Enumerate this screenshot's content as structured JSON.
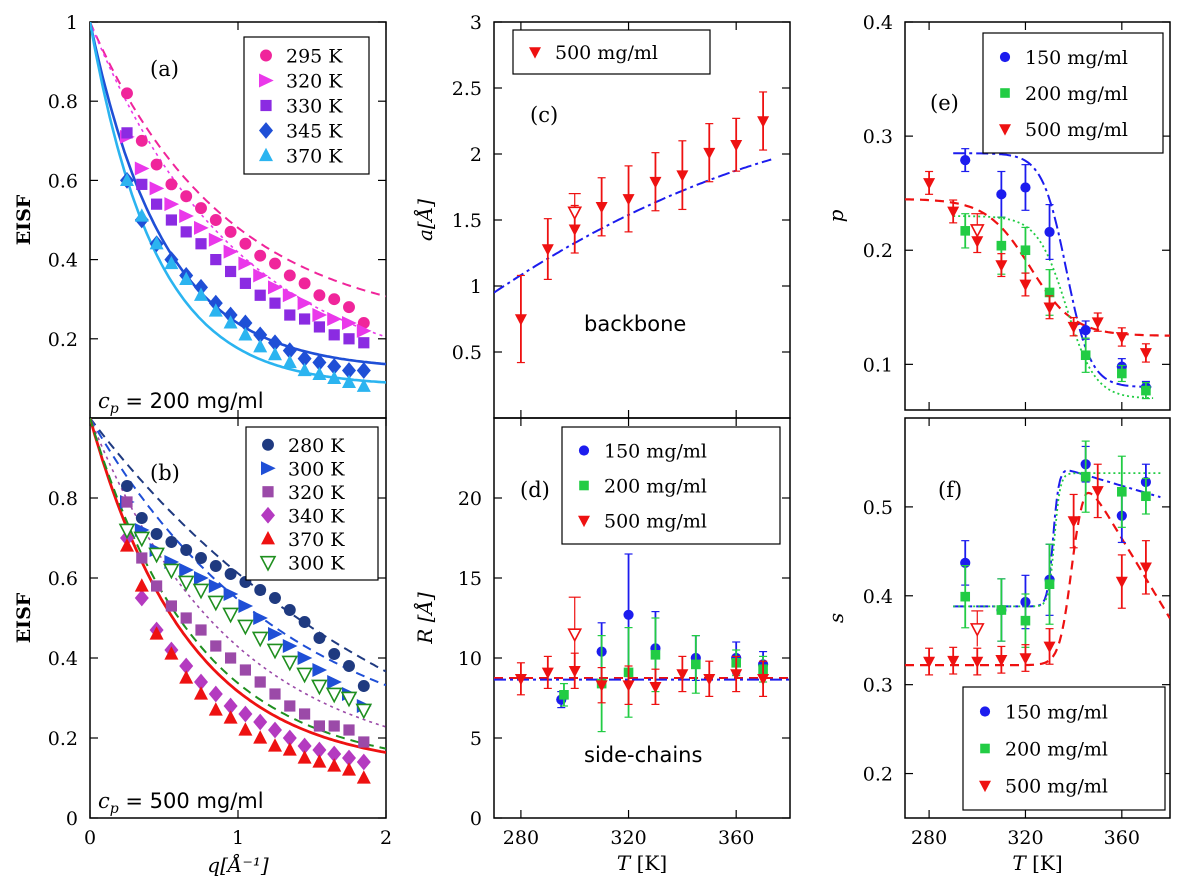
{
  "figure": {
    "x_label_q": "q[Å⁻¹]",
    "x_label_T": "T [K]",
    "eisf_label": "EISF"
  },
  "chart_data": [
    {
      "id": "a",
      "panel_label": "(a)",
      "type": "scatter",
      "ylabel": "EISF",
      "xlim": [
        0,
        2
      ],
      "ylim": [
        0,
        1
      ],
      "xticks": [
        "0",
        "1",
        "2"
      ],
      "yticks": [
        "0.2",
        "0.4",
        "0.6",
        "0.8",
        "1"
      ],
      "annotation": "c_p = 200 mg/ml",
      "legend": "top-right",
      "q": [
        0.25,
        0.35,
        0.45,
        0.55,
        0.65,
        0.75,
        0.85,
        0.95,
        1.05,
        1.15,
        1.25,
        1.35,
        1.45,
        1.55,
        1.65,
        1.75,
        1.85
      ],
      "series": [
        {
          "name": "295 K",
          "color": "#f0259b",
          "marker": "circle",
          "values": [
            0.82,
            0.7,
            0.64,
            0.59,
            0.56,
            0.53,
            0.5,
            0.47,
            0.44,
            0.41,
            0.39,
            0.36,
            0.34,
            0.31,
            0.3,
            0.28,
            0.24
          ]
        },
        {
          "name": "320 K",
          "color": "#ea38ea",
          "marker": "triangle-right",
          "values": [
            0.71,
            0.63,
            0.58,
            0.54,
            0.51,
            0.48,
            0.45,
            0.42,
            0.39,
            0.36,
            0.33,
            0.31,
            0.29,
            0.26,
            0.25,
            0.24,
            0.22
          ]
        },
        {
          "name": "330 K",
          "color": "#8b2be2",
          "marker": "square",
          "values": [
            0.72,
            0.59,
            0.54,
            0.5,
            0.47,
            0.44,
            0.4,
            0.37,
            0.34,
            0.31,
            0.29,
            0.26,
            0.25,
            0.23,
            0.21,
            0.2,
            0.19
          ]
        },
        {
          "name": "345 K",
          "color": "#1f4fd6",
          "marker": "diamond",
          "values": [
            0.6,
            0.5,
            0.44,
            0.4,
            0.36,
            0.33,
            0.29,
            0.26,
            0.24,
            0.21,
            0.19,
            0.17,
            0.15,
            0.14,
            0.13,
            0.12,
            0.12
          ]
        },
        {
          "name": "370 K",
          "color": "#2bb4f0",
          "marker": "triangle-up",
          "values": [
            0.6,
            0.51,
            0.44,
            0.39,
            0.35,
            0.31,
            0.27,
            0.24,
            0.21,
            0.18,
            0.16,
            0.14,
            0.12,
            0.11,
            0.1,
            0.09,
            0.08
          ]
        }
      ]
    },
    {
      "id": "b",
      "panel_label": "(b)",
      "type": "scatter",
      "ylabel": "EISF",
      "xlim": [
        0,
        2
      ],
      "ylim": [
        0,
        1
      ],
      "xticks": [
        "0",
        "1",
        "2"
      ],
      "yticks": [
        "0",
        "0.2",
        "0.4",
        "0.6",
        "0.8"
      ],
      "annotation": "c_p = 500 mg/ml",
      "legend": "top-right",
      "q": [
        0.25,
        0.35,
        0.45,
        0.55,
        0.65,
        0.75,
        0.85,
        0.95,
        1.05,
        1.15,
        1.25,
        1.35,
        1.45,
        1.55,
        1.65,
        1.75,
        1.85
      ],
      "series": [
        {
          "name": "280 K",
          "color": "#1f3a80",
          "marker": "circle",
          "values": [
            0.83,
            0.75,
            0.71,
            0.69,
            0.67,
            0.65,
            0.63,
            0.61,
            0.59,
            0.57,
            0.55,
            0.52,
            0.49,
            0.45,
            0.41,
            0.38,
            0.33
          ]
        },
        {
          "name": "300 K",
          "color": "#1f4fd6",
          "marker": "triangle-right",
          "values": [
            0.79,
            0.72,
            0.67,
            0.64,
            0.62,
            0.6,
            0.58,
            0.56,
            0.53,
            0.5,
            0.46,
            0.43,
            0.4,
            0.37,
            0.34,
            0.31,
            0.28
          ]
        },
        {
          "name": "320 K",
          "color": "#9b4aa8",
          "marker": "square",
          "values": [
            0.79,
            0.65,
            0.58,
            0.53,
            0.5,
            0.47,
            0.43,
            0.4,
            0.37,
            0.34,
            0.31,
            0.28,
            0.26,
            0.23,
            0.23,
            0.22,
            0.19
          ]
        },
        {
          "name": "340 K",
          "color": "#b43ac0",
          "marker": "diamond",
          "values": [
            0.7,
            0.55,
            0.47,
            0.42,
            0.38,
            0.34,
            0.31,
            0.28,
            0.26,
            0.24,
            0.22,
            0.2,
            0.18,
            0.17,
            0.16,
            0.15,
            0.14
          ]
        },
        {
          "name": "370 K",
          "color": "#ee1111",
          "marker": "triangle-up",
          "values": [
            0.68,
            0.58,
            0.46,
            0.41,
            0.35,
            0.31,
            0.27,
            0.25,
            0.22,
            0.2,
            0.18,
            0.17,
            0.15,
            0.14,
            0.13,
            0.12,
            0.1
          ]
        },
        {
          "name": "300 K",
          "color": "#1f8f1f",
          "marker": "triangle-down-open",
          "values": [
            0.72,
            0.7,
            0.66,
            0.62,
            0.59,
            0.57,
            0.54,
            0.51,
            0.48,
            0.45,
            0.42,
            0.39,
            0.36,
            0.33,
            0.31,
            0.3,
            0.27
          ]
        }
      ]
    },
    {
      "id": "c",
      "panel_label": "(c)",
      "type": "scatter",
      "ylabel": "a[Å]",
      "xlim": [
        270,
        380
      ],
      "ylim": [
        0,
        3
      ],
      "xticks": [
        "280",
        "320",
        "360"
      ],
      "yticks": [
        "0.5",
        "1",
        "1.5",
        "2",
        "2.5",
        "3"
      ],
      "annotation": "backbone",
      "legend": "top-left",
      "series": [
        {
          "name": "500 mg/ml",
          "color": "#ee1111",
          "marker": "triangle-down",
          "x": [
            280,
            290,
            300,
            310,
            320,
            330,
            340,
            350,
            360,
            370
          ],
          "values": [
            0.75,
            1.28,
            1.43,
            1.6,
            1.66,
            1.79,
            1.84,
            2.01,
            2.07,
            2.25
          ],
          "err": [
            0.33,
            0.23,
            0.18,
            0.22,
            0.25,
            0.22,
            0.26,
            0.22,
            0.2,
            0.22
          ]
        }
      ],
      "open_points": [
        {
          "x": 300,
          "y": 1.56,
          "err": 0.14
        }
      ]
    },
    {
      "id": "d",
      "panel_label": "(d)",
      "type": "scatter",
      "ylabel": "R [Å]",
      "xlabel": "T [K]",
      "xlim": [
        270,
        380
      ],
      "ylim": [
        0,
        25
      ],
      "xticks": [
        "280",
        "320",
        "360"
      ],
      "yticks": [
        "0",
        "5",
        "10",
        "15",
        "20"
      ],
      "annotation": "side-chains",
      "legend": "top-right",
      "series": [
        {
          "name": "150 mg/ml",
          "color": "#1c1cee",
          "marker": "circle",
          "x": [
            295,
            310,
            320,
            330,
            345,
            360,
            370
          ],
          "values": [
            7.4,
            10.4,
            12.7,
            10.6,
            10.0,
            10.0,
            9.6
          ],
          "err": [
            0.5,
            1.8,
            3.8,
            2.3,
            1.4,
            1.0,
            0.8
          ]
        },
        {
          "name": "200 mg/ml",
          "color": "#22cc44",
          "marker": "square",
          "x": [
            296,
            310,
            320,
            330,
            345,
            360,
            370
          ],
          "values": [
            7.7,
            8.4,
            9.1,
            10.2,
            9.6,
            9.7,
            9.3
          ],
          "err": [
            0.7,
            3.0,
            2.8,
            2.3,
            1.8,
            0.8,
            0.8
          ]
        },
        {
          "name": "500 mg/ml",
          "color": "#ee1111",
          "marker": "triangle-down",
          "x": [
            280,
            290,
            300,
            310,
            320,
            330,
            340,
            350,
            360,
            370
          ],
          "values": [
            8.7,
            9.1,
            9.2,
            8.3,
            8.3,
            8.2,
            9.0,
            8.7,
            9.0,
            8.7
          ],
          "err": [
            1.0,
            1.0,
            1.1,
            1.1,
            1.2,
            1.1,
            1.1,
            1.1,
            1.1,
            1.1
          ]
        }
      ],
      "open_points": [
        {
          "x": 300,
          "y": 11.5,
          "err": 2.3
        }
      ]
    },
    {
      "id": "e",
      "panel_label": "(e)",
      "type": "scatter",
      "ylabel": "p",
      "xlim": [
        270,
        380
      ],
      "ylim": [
        0.06,
        0.4
      ],
      "xticks": [
        "280",
        "320",
        "360"
      ],
      "yticks": [
        "0.1",
        "0.2",
        "0.3",
        "0.4"
      ],
      "legend": "top-right",
      "series": [
        {
          "name": "150 mg/ml",
          "color": "#1c1cee",
          "marker": "circle",
          "x": [
            295,
            310,
            320,
            330,
            345,
            360,
            370
          ],
          "values": [
            0.279,
            0.249,
            0.255,
            0.216,
            0.13,
            0.098,
            0.08
          ],
          "err": [
            0.01,
            0.02,
            0.02,
            0.024,
            0.008,
            0.007,
            0.005
          ]
        },
        {
          "name": "200 mg/ml",
          "color": "#22cc44",
          "marker": "square",
          "x": [
            295,
            310,
            320,
            330,
            345,
            360,
            370
          ],
          "values": [
            0.217,
            0.204,
            0.2,
            0.163,
            0.108,
            0.092,
            0.077
          ],
          "err": [
            0.015,
            0.025,
            0.02,
            0.02,
            0.015,
            0.007,
            0.007
          ]
        },
        {
          "name": "500 mg/ml",
          "color": "#ee1111",
          "marker": "triangle-down",
          "x": [
            280,
            290,
            300,
            310,
            320,
            330,
            340,
            350,
            360,
            370
          ],
          "values": [
            0.259,
            0.234,
            0.208,
            0.187,
            0.17,
            0.15,
            0.133,
            0.137,
            0.124,
            0.11
          ],
          "err": [
            0.01,
            0.01,
            0.01,
            0.01,
            0.01,
            0.01,
            0.008,
            0.008,
            0.008,
            0.008
          ]
        }
      ],
      "open_points": [
        {
          "x": 300,
          "y": 0.218,
          "err": 0.014
        }
      ]
    },
    {
      "id": "f",
      "panel_label": "(f)",
      "type": "scatter",
      "ylabel": "s",
      "xlabel": "T [K]",
      "xlim": [
        270,
        380
      ],
      "ylim": [
        0.15,
        0.6
      ],
      "xticks": [
        "280",
        "320",
        "360"
      ],
      "yticks": [
        "0.2",
        "0.3",
        "0.4",
        "0.5"
      ],
      "legend": "bottom-right",
      "series": [
        {
          "name": "150 mg/ml",
          "color": "#1c1cee",
          "marker": "circle",
          "x": [
            295,
            310,
            320,
            330,
            345,
            360,
            370
          ],
          "values": [
            0.437,
            0.384,
            0.393,
            0.418,
            0.548,
            0.49,
            0.528
          ],
          "err": [
            0.025,
            0.035,
            0.03,
            0.04,
            0.02,
            0.03,
            0.02
          ]
        },
        {
          "name": "200 mg/ml",
          "color": "#22cc44",
          "marker": "square",
          "x": [
            295,
            310,
            320,
            330,
            345,
            360,
            370
          ],
          "values": [
            0.399,
            0.384,
            0.372,
            0.413,
            0.534,
            0.517,
            0.512
          ],
          "err": [
            0.035,
            0.035,
            0.03,
            0.045,
            0.04,
            0.04,
            0.02
          ]
        },
        {
          "name": "500 mg/ml",
          "color": "#ee1111",
          "marker": "triangle-down",
          "x": [
            280,
            290,
            300,
            310,
            320,
            330,
            340,
            350,
            360,
            370
          ],
          "values": [
            0.326,
            0.327,
            0.326,
            0.328,
            0.33,
            0.343,
            0.484,
            0.518,
            0.416,
            0.432
          ],
          "err": [
            0.015,
            0.015,
            0.015,
            0.015,
            0.015,
            0.02,
            0.03,
            0.03,
            0.03,
            0.03
          ]
        }
      ],
      "open_points": [
        {
          "x": 300,
          "y": 0.363,
          "err": 0.02
        }
      ]
    }
  ]
}
